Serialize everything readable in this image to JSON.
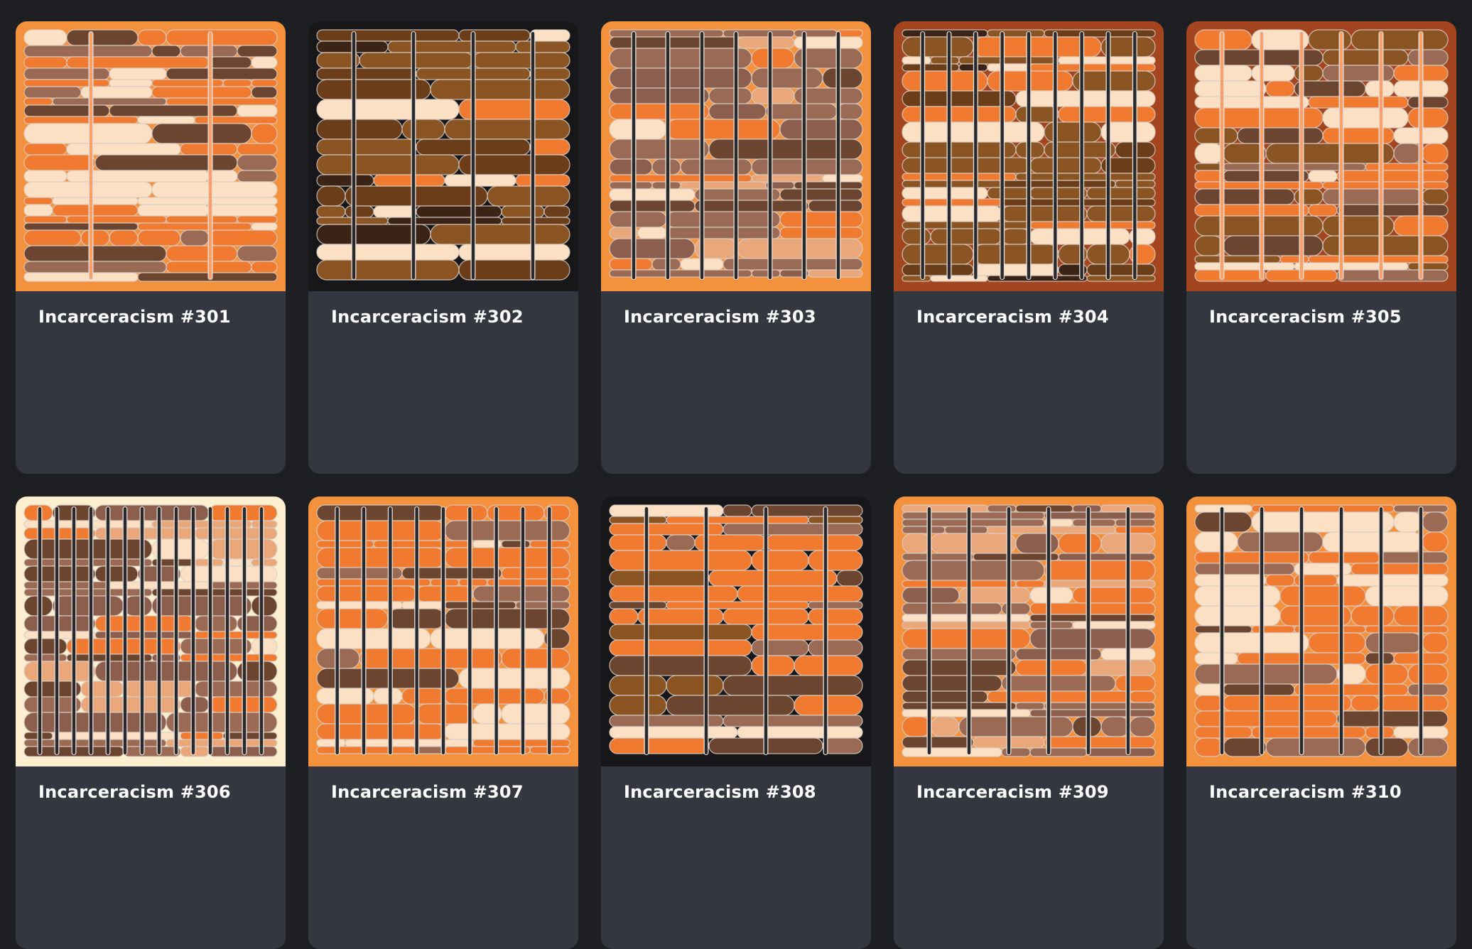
{
  "palette": {
    "page_background": "#1e1f23",
    "card_background": "#343740",
    "title_color": "#ffffff",
    "bar_color": "#2a2a2c",
    "shades": [
      "#f07b30",
      "#fbe0c4",
      "#8a5523",
      "#6b4530",
      "#9a6a55",
      "#eaa77a",
      "#3b2316"
    ]
  },
  "cards": [
    {
      "title": "Incarceracism #301",
      "frame": "#f4913c",
      "bars": 2,
      "barColor": "#f6a06b",
      "scheme": "light"
    },
    {
      "title": "Incarceracism #302",
      "frame": "#17171a",
      "bars": 4,
      "barColor": "#2a2a2c",
      "scheme": "brown"
    },
    {
      "title": "Incarceracism #303",
      "frame": "#f4913c",
      "bars": 7,
      "barColor": "#2a2a2c",
      "scheme": "mauve"
    },
    {
      "title": "Incarceracism #304",
      "frame": "#a3451e",
      "bars": 9,
      "barColor": "#2a2a2c",
      "scheme": "brown"
    },
    {
      "title": "Incarceracism #305",
      "frame": "#a3451e",
      "bars": 6,
      "barColor": "#f6a06b",
      "scheme": "orange"
    },
    {
      "title": "Incarceracism #306",
      "frame": "#fbefcf",
      "bars": 14,
      "barColor": "#2a2a2c",
      "scheme": "mauve"
    },
    {
      "title": "Incarceracism #307",
      "frame": "#f4913c",
      "bars": 9,
      "barColor": "#2a2a2c",
      "scheme": "light"
    },
    {
      "title": "Incarceracism #308",
      "frame": "#17171a",
      "bars": 4,
      "barColor": "#2a2a2c",
      "scheme": "orange"
    },
    {
      "title": "Incarceracism #309",
      "frame": "#f4913c",
      "bars": 6,
      "barColor": "#2a2a2c",
      "scheme": "mauve"
    },
    {
      "title": "Incarceracism #310",
      "frame": "#f4913c",
      "bars": 6,
      "barColor": "#2a2a2c",
      "scheme": "light"
    }
  ]
}
